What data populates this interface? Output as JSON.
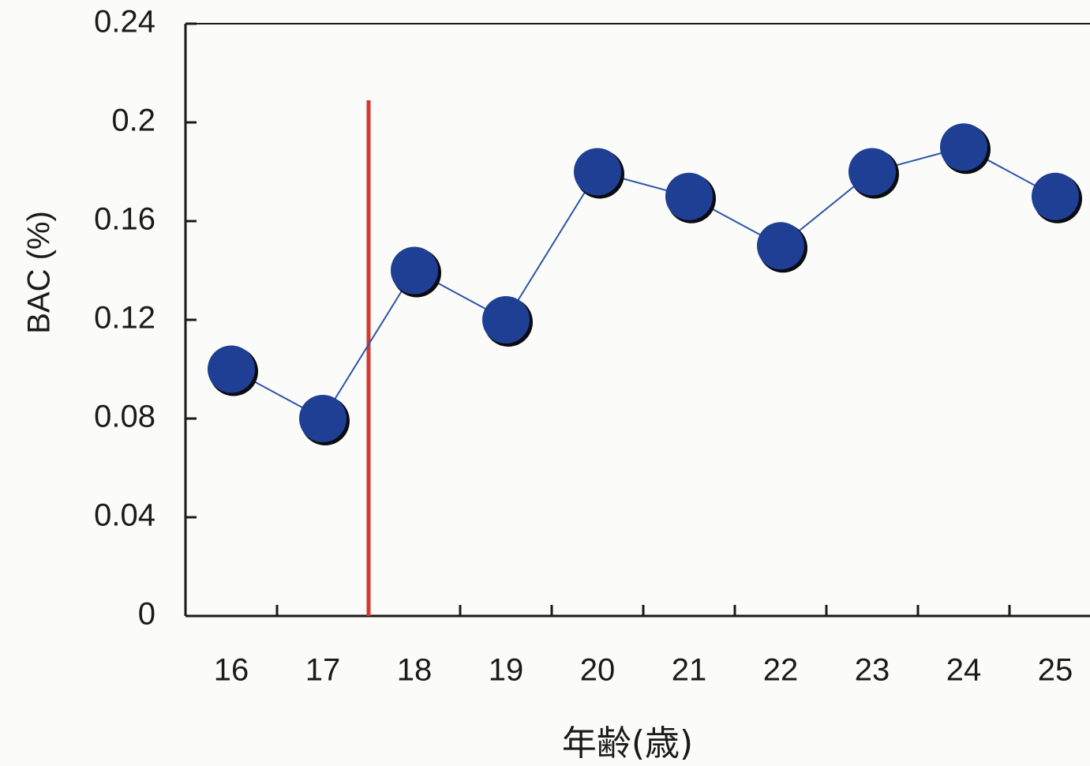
{
  "chart_data": {
    "type": "line",
    "x": [
      "16",
      "17",
      "18",
      "19",
      "20",
      "21",
      "22",
      "23",
      "24",
      "25"
    ],
    "series": [
      {
        "values": [
          0.1,
          0.08,
          0.14,
          0.12,
          0.18,
          0.17,
          0.15,
          0.18,
          0.19,
          0.17
        ]
      }
    ],
    "ylabel": "BAC (%)",
    "xlabel": "年齢(歳)",
    "ylim": [
      0,
      0.24
    ],
    "yticks": [
      "0",
      "0.04",
      "0.08",
      "0.12",
      "0.16",
      "0.2",
      "0.24"
    ],
    "reference_line": {
      "between": [
        "17",
        "18"
      ]
    },
    "grid": false,
    "colors": {
      "marker": "#1e3f94",
      "marker_shadow": "#0b0b12",
      "line": "#2d55a8",
      "reference": "#d23a2e",
      "axis": "#1a1a1a"
    }
  }
}
